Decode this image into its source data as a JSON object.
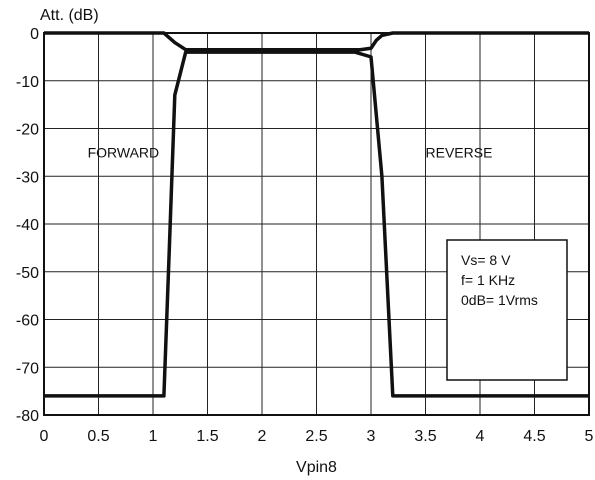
{
  "chart_data": {
    "type": "line",
    "title": "",
    "xlabel": "Vpin8",
    "ylabel": "Att. (dB)",
    "xlim": [
      0,
      5
    ],
    "ylim": [
      -80,
      0
    ],
    "grid": true,
    "x_ticks": [
      0,
      0.5,
      1,
      1.5,
      2,
      2.5,
      3,
      3.5,
      4,
      4.5,
      5
    ],
    "x_tick_labels": [
      "0",
      "0.5",
      "1",
      "1.5",
      "2",
      "2.5",
      "3",
      "3.5",
      "4",
      "4.5",
      "5"
    ],
    "y_ticks": [
      0,
      -10,
      -20,
      -30,
      -40,
      -50,
      -60,
      -70,
      -80
    ],
    "y_tick_labels": [
      "0",
      "-10",
      "-20",
      "-30",
      "-40",
      "-50",
      "-60",
      "-70",
      "-80"
    ],
    "series": [
      {
        "name": "FORWARD",
        "x": [
          0,
          1.1,
          1.15,
          1.2,
          1.3,
          2.85,
          3.0,
          3.1,
          3.2,
          5.0
        ],
        "y": [
          -76,
          -76,
          -45,
          -13,
          -4,
          -4,
          -5,
          -30,
          -76,
          -76
        ]
      },
      {
        "name": "REVERSE",
        "x": [
          0,
          1.1,
          1.15,
          1.2,
          1.3,
          2.9,
          3.0,
          3.05,
          3.1,
          3.2,
          5.0
        ],
        "y": [
          0,
          0,
          -1,
          -2,
          -3.5,
          -3.5,
          -3.2,
          -1.5,
          -0.5,
          0,
          0
        ]
      }
    ],
    "annotations": [
      {
        "text": "FORWARD",
        "x": 0.4,
        "y": -25
      },
      {
        "text": "REVERSE",
        "x": 3.5,
        "y": -25
      }
    ],
    "info_box": [
      "Vs= 8  V",
      "f= 1 KHz",
      "0dB= 1Vrms"
    ]
  }
}
